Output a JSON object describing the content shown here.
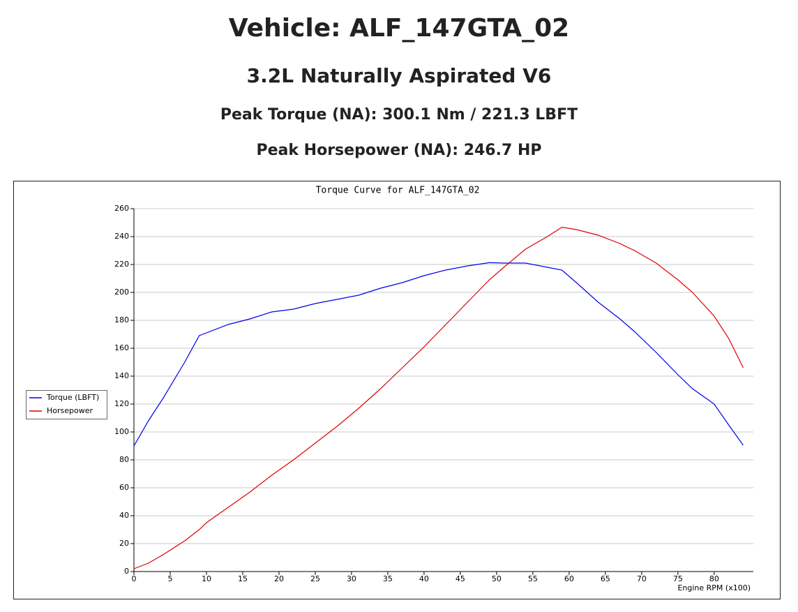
{
  "header": {
    "title": "Vehicle: ALF_147GTA_02",
    "engine": "3.2L Naturally Aspirated V6",
    "peak_torque": "Peak Torque (NA): 300.1 Nm / 221.3 LBFT",
    "peak_horsepower": "Peak Horsepower (NA): 246.7 HP"
  },
  "chart_data": {
    "type": "line",
    "title": "Torque Curve for ALF_147GTA_02",
    "x_label": "Engine RPM (x100)",
    "xlim": [
      0,
      85.4
    ],
    "xticks": [
      0,
      5,
      10,
      15,
      20,
      25,
      30,
      35,
      40,
      45,
      50,
      55,
      60,
      65,
      70,
      75,
      80
    ],
    "ylim": [
      0,
      260
    ],
    "yticks": [
      0,
      20,
      40,
      60,
      80,
      100,
      120,
      140,
      160,
      180,
      200,
      220,
      240,
      260
    ],
    "grid": true,
    "legend": "left",
    "x": [
      0,
      2,
      4,
      7,
      9,
      10,
      13,
      16,
      19,
      22,
      25,
      28,
      31,
      34,
      37,
      40,
      43,
      46,
      49,
      51,
      54,
      57,
      59,
      61,
      64,
      67,
      69,
      72,
      75,
      77,
      80,
      82,
      84
    ],
    "series": [
      {
        "name": "Torque (LBFT)",
        "color": "#0000ee",
        "values": [
          90,
          108,
          124,
          150,
          169,
          171,
          177,
          181,
          186,
          188,
          192,
          195,
          198,
          203,
          207,
          212,
          216,
          219,
          221.3,
          221,
          221,
          218,
          216,
          207,
          193,
          181,
          172,
          157,
          141,
          131,
          120,
          105,
          90.5
        ]
      },
      {
        "name": "Horsepower",
        "color": "#dd0000",
        "values": [
          2,
          6,
          12,
          22,
          30,
          35,
          46,
          57,
          69,
          80,
          92,
          104,
          117,
          131,
          146,
          161,
          177,
          193,
          209,
          218,
          231,
          240,
          246.7,
          245,
          241,
          235,
          230,
          221,
          209,
          200,
          183,
          167,
          146
        ]
      }
    ]
  }
}
